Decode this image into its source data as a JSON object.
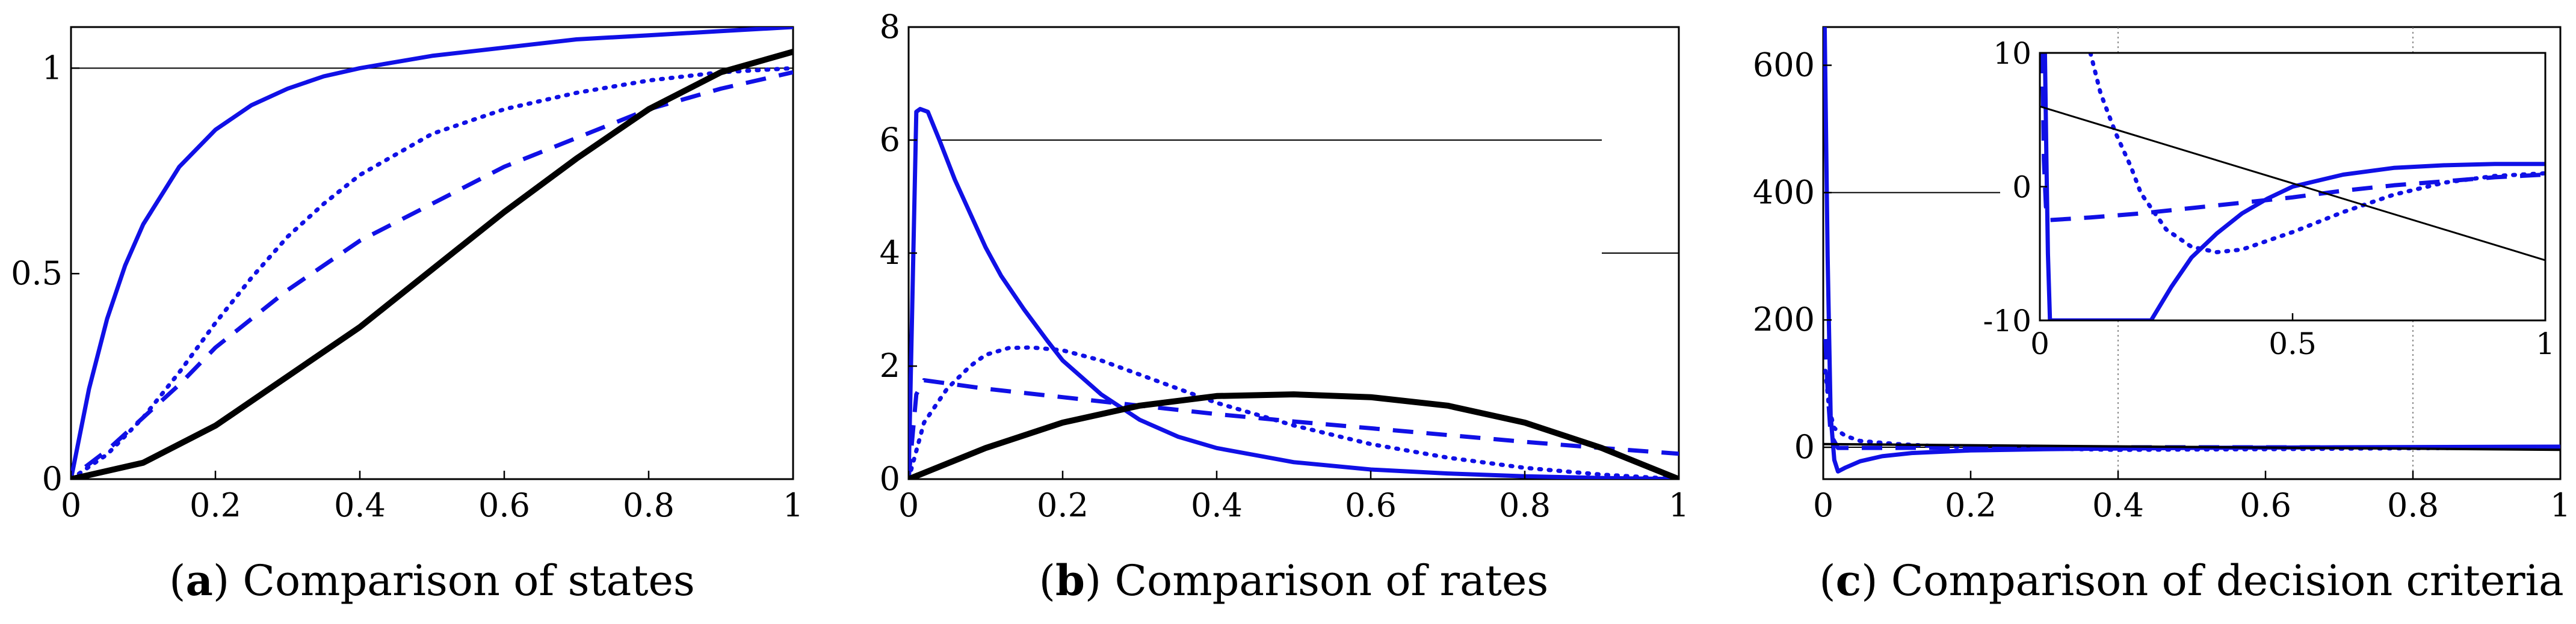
{
  "figure": {
    "colors": {
      "blue": "#1010e6",
      "black": "#000000"
    },
    "line_styles": [
      "solid",
      "dotted",
      "dashed",
      "solid"
    ]
  },
  "chart_data": [
    {
      "id": "a",
      "type": "line",
      "caption_label": "a",
      "caption_text": " Comparison of states",
      "title": "",
      "xlabel": "",
      "ylabel": "",
      "xlim": [
        0,
        1
      ],
      "ylim": [
        0,
        1.1
      ],
      "xticks": [
        0,
        0.2,
        0.4,
        0.6,
        0.8,
        1
      ],
      "xtick_labels": [
        "0",
        "0.2",
        "0.4",
        "0.6",
        "0.8",
        "1"
      ],
      "yticks": [
        0,
        0.5,
        1
      ],
      "ytick_labels": [
        "0",
        "0.5",
        "1"
      ],
      "reference_lines": [
        {
          "y": 1,
          "x_from": 0,
          "x_to": 1
        }
      ],
      "series": [
        {
          "name": "blue-solid",
          "color": "#1010e6",
          "style": "solid",
          "width": 7,
          "x": [
            0,
            0.025,
            0.05,
            0.075,
            0.1,
            0.15,
            0.2,
            0.25,
            0.3,
            0.35,
            0.4,
            0.5,
            0.6,
            0.7,
            0.8,
            0.9,
            1.0
          ],
          "y": [
            0,
            0.22,
            0.39,
            0.52,
            0.62,
            0.76,
            0.85,
            0.91,
            0.95,
            0.98,
            1.0,
            1.03,
            1.05,
            1.07,
            1.08,
            1.09,
            1.1
          ]
        },
        {
          "name": "blue-dotted",
          "color": "#1010e6",
          "style": "dotted",
          "width": 7,
          "x": [
            0,
            0.05,
            0.1,
            0.15,
            0.2,
            0.25,
            0.3,
            0.35,
            0.4,
            0.5,
            0.6,
            0.7,
            0.8,
            0.9,
            1.0
          ],
          "y": [
            0,
            0.06,
            0.15,
            0.26,
            0.38,
            0.49,
            0.59,
            0.67,
            0.74,
            0.84,
            0.9,
            0.94,
            0.97,
            0.99,
            1.0
          ]
        },
        {
          "name": "blue-dashed",
          "color": "#1010e6",
          "style": "dashed",
          "width": 7,
          "x": [
            0.02,
            0.05,
            0.1,
            0.15,
            0.2,
            0.3,
            0.4,
            0.5,
            0.6,
            0.7,
            0.8,
            0.9,
            1.0
          ],
          "y": [
            0.03,
            0.07,
            0.15,
            0.23,
            0.32,
            0.46,
            0.58,
            0.67,
            0.76,
            0.83,
            0.9,
            0.95,
            0.99
          ]
        },
        {
          "name": "black-solid",
          "color": "#000000",
          "style": "solid",
          "width": 10,
          "x": [
            0,
            0.1,
            0.2,
            0.3,
            0.4,
            0.5,
            0.6,
            0.7,
            0.8,
            0.9,
            1.0
          ],
          "y": [
            0,
            0.04,
            0.13,
            0.25,
            0.37,
            0.51,
            0.65,
            0.78,
            0.9,
            0.99,
            1.04
          ]
        }
      ]
    },
    {
      "id": "b",
      "type": "line",
      "caption_label": "b",
      "caption_text": " Comparison of rates",
      "title": "",
      "xlabel": "",
      "ylabel": "",
      "xlim": [
        0,
        1
      ],
      "ylim": [
        0,
        8
      ],
      "xticks": [
        0,
        0.2,
        0.4,
        0.6,
        0.8,
        1
      ],
      "xtick_labels": [
        "0",
        "0.2",
        "0.4",
        "0.6",
        "0.8",
        "1"
      ],
      "yticks": [
        0,
        2,
        4,
        6,
        8
      ],
      "ytick_labels": [
        "0",
        "2",
        "4",
        "6",
        "8"
      ],
      "reference_lines": [
        {
          "y": 6,
          "x_from": 0.04,
          "x_to": 0.9
        },
        {
          "y": 4,
          "x_from": 0.9,
          "x_to": 1
        }
      ],
      "series": [
        {
          "name": "blue-solid",
          "color": "#1010e6",
          "style": "solid",
          "width": 7,
          "x": [
            0,
            0.01,
            0.015,
            0.025,
            0.04,
            0.06,
            0.08,
            0.1,
            0.12,
            0.15,
            0.18,
            0.2,
            0.25,
            0.3,
            0.35,
            0.4,
            0.5,
            0.6,
            0.7,
            0.8,
            0.9,
            1.0
          ],
          "y": [
            0,
            6.5,
            6.55,
            6.5,
            6.0,
            5.3,
            4.7,
            4.1,
            3.6,
            3.0,
            2.45,
            2.1,
            1.5,
            1.05,
            0.75,
            0.55,
            0.3,
            0.17,
            0.1,
            0.05,
            0.02,
            0
          ]
        },
        {
          "name": "blue-dotted",
          "color": "#1010e6",
          "style": "dotted",
          "width": 7,
          "x": [
            0,
            0.02,
            0.05,
            0.08,
            0.1,
            0.13,
            0.16,
            0.2,
            0.25,
            0.3,
            0.35,
            0.4,
            0.5,
            0.6,
            0.7,
            0.8,
            0.9,
            1.0
          ],
          "y": [
            0,
            1.0,
            1.6,
            2.0,
            2.2,
            2.32,
            2.33,
            2.28,
            2.1,
            1.85,
            1.6,
            1.35,
            0.95,
            0.62,
            0.38,
            0.2,
            0.08,
            0
          ]
        },
        {
          "name": "blue-dashed",
          "color": "#1010e6",
          "style": "dashed",
          "width": 7,
          "x": [
            0,
            0.01,
            0.02,
            0.1,
            0.2,
            0.3,
            0.4,
            0.5,
            0.6,
            0.7,
            0.8,
            0.9,
            1.0
          ],
          "y": [
            0,
            1.5,
            1.75,
            1.6,
            1.45,
            1.3,
            1.15,
            1.02,
            0.9,
            0.78,
            0.66,
            0.55,
            0.45
          ]
        },
        {
          "name": "black-solid",
          "color": "#000000",
          "style": "solid",
          "width": 10,
          "x": [
            0,
            0.1,
            0.2,
            0.3,
            0.4,
            0.5,
            0.6,
            0.7,
            0.8,
            0.9,
            1.0
          ],
          "y": [
            0,
            0.55,
            1.0,
            1.3,
            1.47,
            1.5,
            1.45,
            1.3,
            1.0,
            0.55,
            0
          ]
        }
      ]
    },
    {
      "id": "c",
      "type": "line",
      "caption_label": "c",
      "caption_text": " Comparison of decision criteria",
      "title": "",
      "xlabel": "",
      "ylabel": "",
      "xlim": [
        0,
        1
      ],
      "ylim": [
        -50,
        660
      ],
      "xticks": [
        0,
        0.2,
        0.4,
        0.6,
        0.8,
        1
      ],
      "xtick_labels": [
        "0",
        "0.2",
        "0.4",
        "0.6",
        "0.8",
        "1"
      ],
      "yticks": [
        0,
        200,
        400,
        600
      ],
      "ytick_labels": [
        "0",
        "200",
        "400",
        "600"
      ],
      "reference_lines": [
        {
          "y": 400,
          "x_from": 0,
          "x_to": 0.24
        },
        {
          "y": 0,
          "x_from": 0,
          "x_to": 1
        }
      ],
      "grid_x": [
        0.4,
        0.8
      ],
      "series": [
        {
          "name": "blue-solid",
          "color": "#1010e6",
          "style": "solid",
          "width": 7,
          "x": [
            0.002,
            0.006,
            0.01,
            0.015,
            0.02,
            0.03,
            0.05,
            0.08,
            0.12,
            0.2,
            0.3,
            0.5,
            0.7,
            1.0
          ],
          "y": [
            660,
            300,
            50,
            -20,
            -38,
            -32,
            -22,
            -14,
            -9,
            -5,
            -3,
            -1,
            0,
            1
          ]
        },
        {
          "name": "blue-dotted",
          "color": "#1010e6",
          "style": "dotted",
          "width": 7,
          "x": [
            0.003,
            0.008,
            0.015,
            0.03,
            0.05,
            0.1,
            0.15,
            0.2,
            0.4,
            0.6,
            1.0
          ],
          "y": [
            120,
            60,
            30,
            18,
            10,
            5,
            2,
            0,
            -4,
            -3,
            0
          ]
        },
        {
          "name": "blue-dashed",
          "color": "#1010e6",
          "style": "dashed",
          "width": 7,
          "x": [
            0.003,
            0.006,
            0.01,
            0.02,
            0.1,
            0.3,
            0.5,
            0.7,
            1.0
          ],
          "y": [
            170,
            90,
            20,
            -1,
            -1,
            0,
            0,
            0,
            0
          ]
        },
        {
          "name": "black-solid",
          "color": "#000000",
          "style": "solid",
          "width": 4,
          "x": [
            0,
            1
          ],
          "y": [
            5,
            -4
          ]
        }
      ],
      "inset": {
        "xlim": [
          0,
          1
        ],
        "ylim": [
          -10,
          10
        ],
        "xticks": [
          0,
          0.5,
          1
        ],
        "xtick_labels": [
          "0",
          "0.5",
          "1"
        ],
        "yticks": [
          -10,
          0,
          10
        ],
        "ytick_labels": [
          "-10",
          "0",
          "10"
        ],
        "series": [
          {
            "name": "inset-blue-solid",
            "color": "#1010e6",
            "style": "solid",
            "width": 7,
            "x": [
              0.01,
              0.013,
              0.016,
              0.02,
              0.22,
              0.26,
              0.3,
              0.35,
              0.4,
              0.45,
              0.5,
              0.6,
              0.7,
              0.8,
              0.9,
              1.0
            ],
            "y": [
              10,
              2,
              -5,
              -10,
              -10,
              -7.5,
              -5.3,
              -3.5,
              -2.0,
              -0.9,
              0,
              0.9,
              1.4,
              1.6,
              1.7,
              1.7
            ]
          },
          {
            "name": "inset-blue-dotted",
            "color": "#1010e6",
            "style": "dotted",
            "width": 7,
            "x": [
              0.1,
              0.12,
              0.15,
              0.18,
              0.2,
              0.25,
              0.3,
              0.35,
              0.4,
              0.5,
              0.6,
              0.7,
              0.8,
              0.9,
              1.0
            ],
            "y": [
              10,
              7,
              4,
              1.5,
              -0.5,
              -3.2,
              -4.5,
              -4.9,
              -4.7,
              -3.4,
              -1.9,
              -0.6,
              0.3,
              0.8,
              1.0
            ]
          },
          {
            "name": "inset-blue-dashed",
            "color": "#1010e6",
            "style": "dashed",
            "width": 7,
            "x": [
              0.005,
              0.008,
              0.012,
              0.02,
              0.1,
              0.2,
              0.3,
              0.4,
              0.5,
              0.6,
              0.7,
              0.8,
              0.9,
              1.0
            ],
            "y": [
              10,
              2,
              -1.5,
              -2.5,
              -2.3,
              -2.0,
              -1.6,
              -1.2,
              -0.8,
              -0.3,
              0.1,
              0.4,
              0.7,
              0.9
            ]
          },
          {
            "name": "inset-black-solid",
            "color": "#000000",
            "style": "solid",
            "width": 3,
            "x": [
              0,
              1
            ],
            "y": [
              6,
              -5.5
            ]
          }
        ]
      }
    }
  ]
}
